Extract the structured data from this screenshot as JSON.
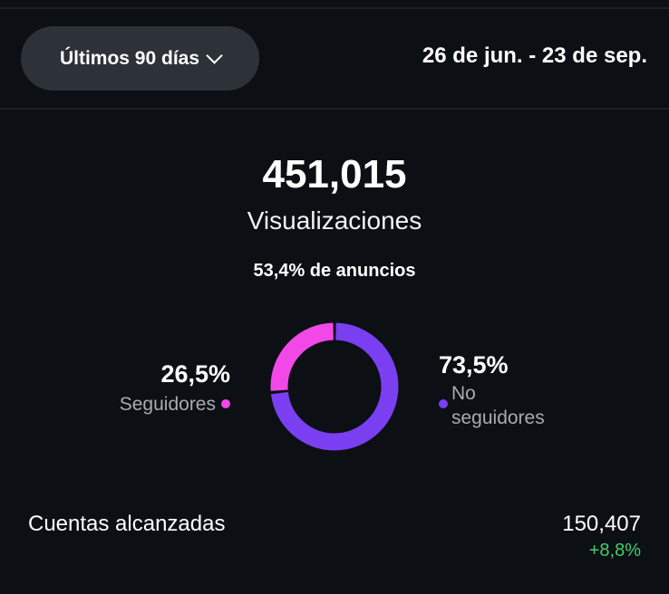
{
  "header": {
    "period_select": "Últimos 90 días",
    "date_range": "26 de jun. - 23 de sep."
  },
  "summary": {
    "total": "451,015",
    "label": "Visualizaciones",
    "ads_share": "53,4% de anuncios"
  },
  "breakdown": {
    "followers": {
      "percent": "26,5%",
      "label": "Seguidores",
      "value": 26.5,
      "color": "#f248e8"
    },
    "non_followers": {
      "percent": "73,5%",
      "label_line1": "No",
      "label_line2": "seguidores",
      "value": 73.5,
      "color": "#7b3ff2"
    }
  },
  "metrics": [
    {
      "label": "Cuentas alcanzadas",
      "value": "150,407",
      "change": "+8,8%",
      "change_color": "#3fcf6b"
    }
  ]
}
